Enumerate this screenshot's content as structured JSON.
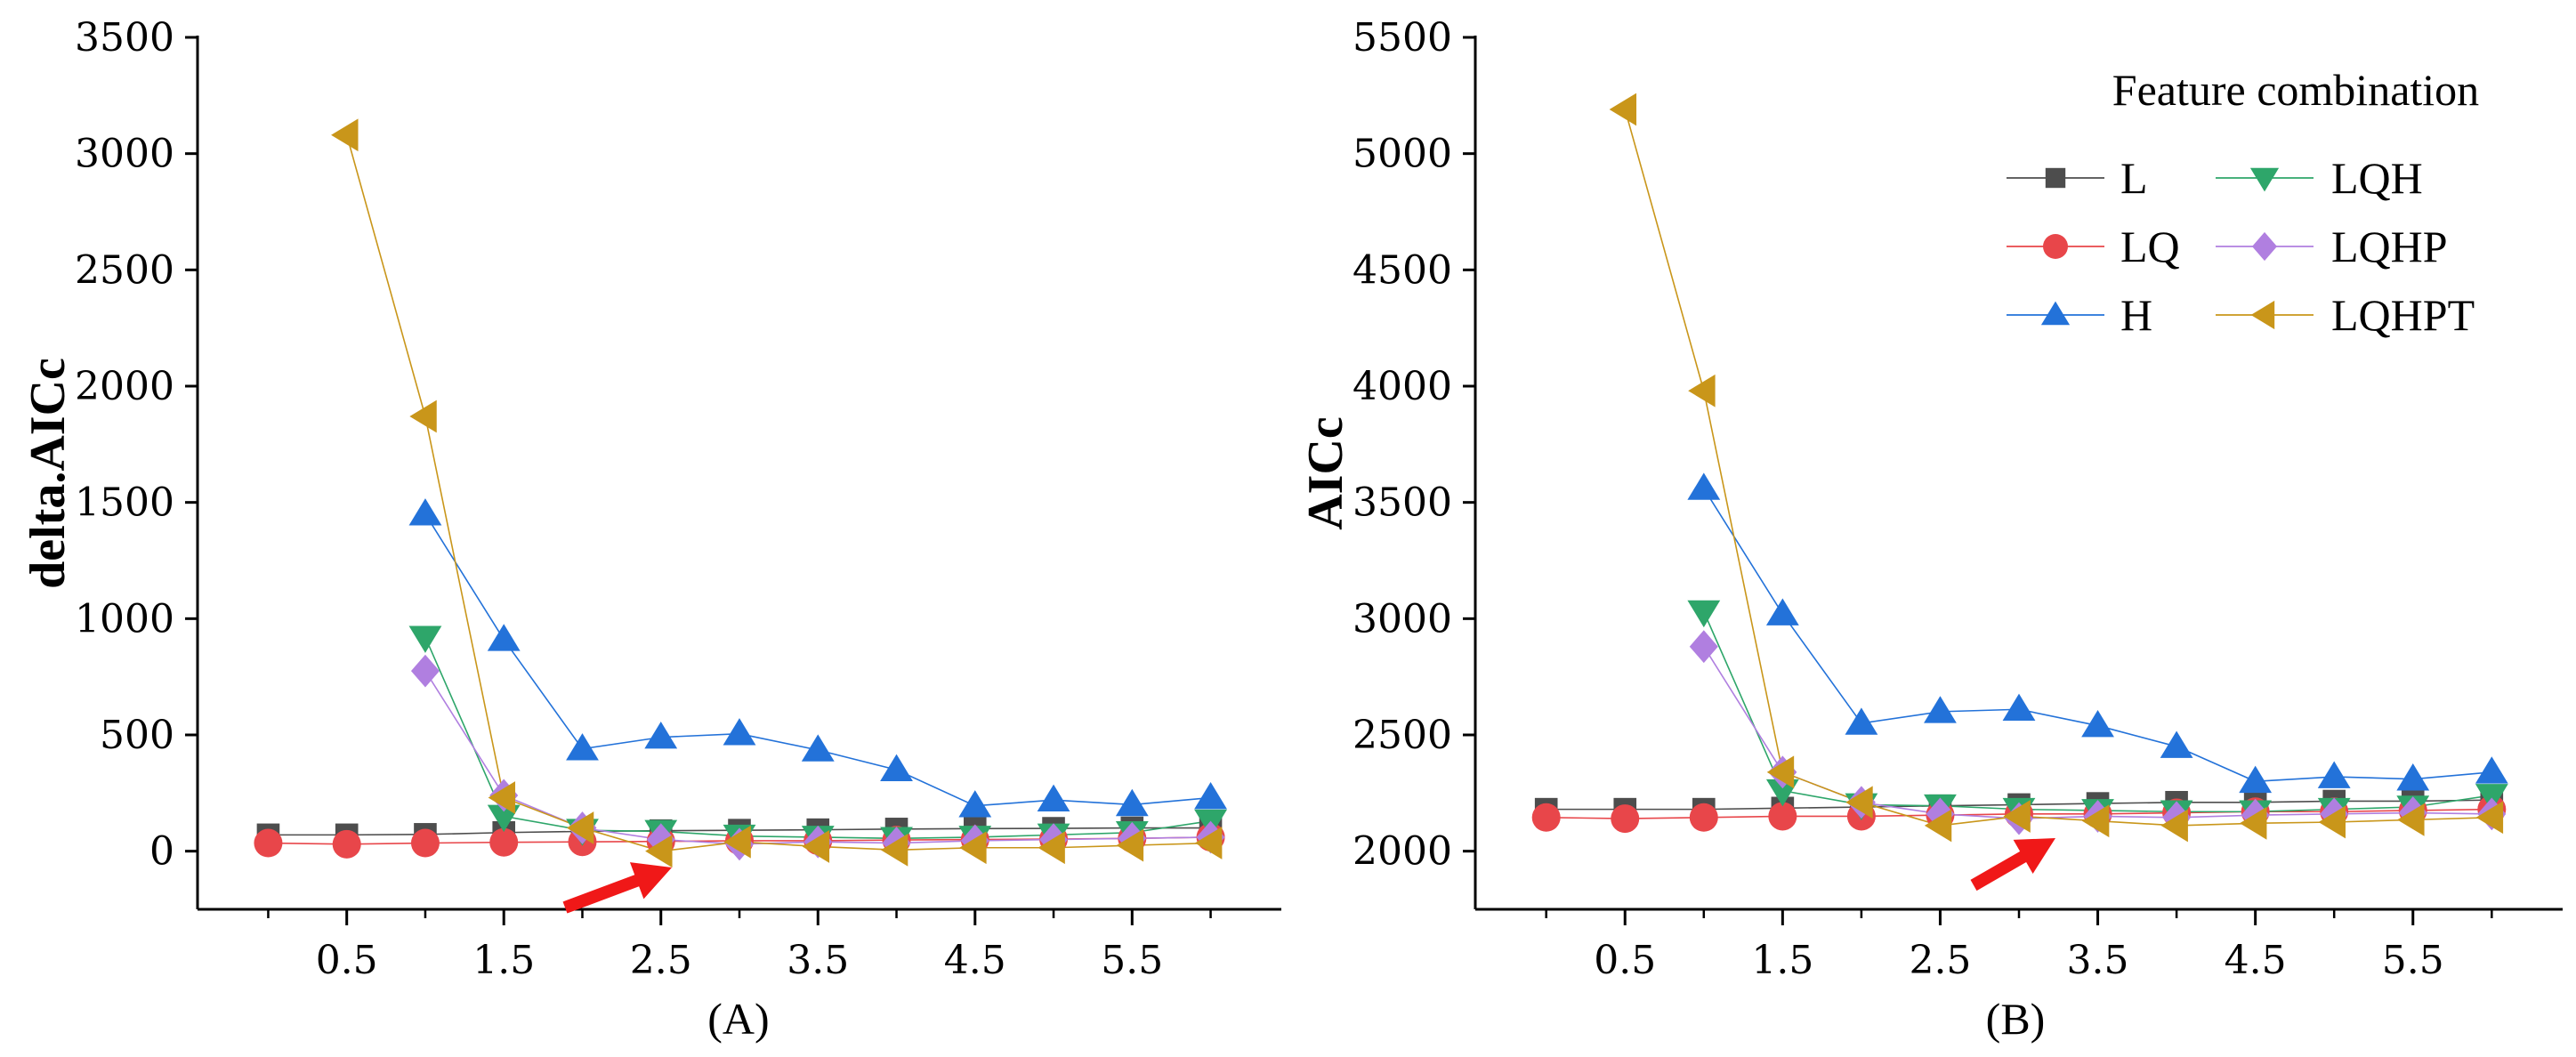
{
  "chart_data": [
    {
      "type": "line",
      "panel": "(A)",
      "ylabel": "delta.AICc",
      "xlabel": "",
      "xlim": [
        -0.45,
        6.45
      ],
      "ylim": [
        -250,
        3500
      ],
      "xticks": [
        0.5,
        1.5,
        2.5,
        3.5,
        4.5,
        5.5
      ],
      "xtick_labels": [
        "0.5",
        "1.5",
        "2.5",
        "3.5",
        "4.5",
        "5.5"
      ],
      "yticks": [
        0,
        500,
        1000,
        1500,
        2000,
        2500,
        3000,
        3500
      ],
      "ytick_labels": [
        "0",
        "500",
        "1000",
        "1500",
        "2000",
        "2500",
        "3000",
        "3500"
      ],
      "annotation": "red arrow pointing to minimum near x = 2.5",
      "series": [
        {
          "name": "L",
          "x": [
            0,
            0.5,
            1,
            1.5,
            2,
            2.5,
            3,
            3.5,
            4,
            4.5,
            5,
            5.5,
            6
          ],
          "y": [
            70,
            70,
            72,
            80,
            85,
            88,
            90,
            92,
            95,
            97,
            98,
            100,
            100
          ]
        },
        {
          "name": "LQ",
          "x": [
            0,
            0.5,
            1,
            1.5,
            2,
            2.5,
            3,
            3.5,
            4,
            4.5,
            5,
            5.5,
            6
          ],
          "y": [
            35,
            30,
            35,
            38,
            40,
            42,
            45,
            45,
            48,
            50,
            52,
            55,
            60
          ]
        },
        {
          "name": "H",
          "x": [
            1,
            1.5,
            2,
            2.5,
            3,
            3.5,
            4,
            4.5,
            5,
            5.5,
            6
          ],
          "y": [
            1450,
            910,
            440,
            490,
            505,
            435,
            350,
            195,
            220,
            200,
            230
          ]
        },
        {
          "name": "LQH",
          "x": [
            1,
            1.5,
            2,
            2.5,
            3,
            3.5,
            4,
            4.5,
            5,
            5.5,
            6
          ],
          "y": [
            920,
            150,
            90,
            85,
            65,
            60,
            55,
            60,
            70,
            80,
            130
          ]
        },
        {
          "name": "LQHP",
          "x": [
            1,
            1.5,
            2,
            2.5,
            3,
            3.5,
            4,
            4.5,
            5,
            5.5,
            6
          ],
          "y": [
            775,
            240,
            100,
            50,
            30,
            40,
            35,
            45,
            50,
            55,
            60
          ]
        },
        {
          "name": "LQHPT",
          "x": [
            0.5,
            1,
            1.5,
            2,
            2.5,
            3,
            3.5,
            4,
            4.5,
            5,
            5.5,
            6
          ],
          "y": [
            3080,
            1870,
            230,
            100,
            0,
            40,
            20,
            5,
            15,
            15,
            25,
            35
          ]
        }
      ]
    },
    {
      "type": "line",
      "panel": "(B)",
      "ylabel": "AICc",
      "xlabel": "",
      "xlim": [
        -0.45,
        6.45
      ],
      "ylim": [
        1750,
        5500
      ],
      "xticks": [
        0.5,
        1.5,
        2.5,
        3.5,
        4.5,
        5.5
      ],
      "xtick_labels": [
        "0.5",
        "1.5",
        "2.5",
        "3.5",
        "4.5",
        "5.5"
      ],
      "yticks": [
        2000,
        2500,
        3000,
        3500,
        4000,
        4500,
        5000,
        5500
      ],
      "ytick_labels": [
        "2000",
        "2500",
        "3000",
        "3500",
        "4000",
        "4500",
        "5000",
        "5500"
      ],
      "annotation": "red arrow pointing to minimum near x = 3.5",
      "legend": {
        "title": "Feature combination",
        "location": "top-right",
        "columns": 2
      },
      "series": [
        {
          "name": "L",
          "x": [
            0,
            0.5,
            1,
            1.5,
            2,
            2.5,
            3,
            3.5,
            4,
            4.5,
            5,
            5.5,
            6
          ],
          "y": [
            2180,
            2180,
            2180,
            2185,
            2190,
            2195,
            2200,
            2205,
            2210,
            2210,
            2215,
            2215,
            2220
          ]
        },
        {
          "name": "LQ",
          "x": [
            0,
            0.5,
            1,
            1.5,
            2,
            2.5,
            3,
            3.5,
            4,
            4.5,
            5,
            5.5,
            6
          ],
          "y": [
            2145,
            2140,
            2145,
            2150,
            2150,
            2155,
            2160,
            2160,
            2165,
            2170,
            2170,
            2175,
            2180
          ]
        },
        {
          "name": "H",
          "x": [
            1,
            1.5,
            2,
            2.5,
            3,
            3.5,
            4,
            4.5,
            5,
            5.5,
            6
          ],
          "y": [
            3560,
            3020,
            2550,
            2600,
            2610,
            2540,
            2450,
            2300,
            2320,
            2310,
            2340
          ]
        },
        {
          "name": "LQH",
          "x": [
            1,
            1.5,
            2,
            2.5,
            3,
            3.5,
            4,
            4.5,
            5,
            5.5,
            6
          ],
          "y": [
            3030,
            2260,
            2200,
            2195,
            2180,
            2175,
            2170,
            2170,
            2180,
            2190,
            2240
          ]
        },
        {
          "name": "LQHP",
          "x": [
            1,
            1.5,
            2,
            2.5,
            3,
            3.5,
            4,
            4.5,
            5,
            5.5,
            6
          ],
          "y": [
            2880,
            2340,
            2210,
            2160,
            2140,
            2150,
            2145,
            2155,
            2160,
            2165,
            2160
          ]
        },
        {
          "name": "LQHPT",
          "x": [
            0.5,
            1,
            1.5,
            2,
            2.5,
            3,
            3.5,
            4,
            4.5,
            5,
            5.5,
            6
          ],
          "y": [
            5190,
            3980,
            2340,
            2210,
            2110,
            2150,
            2130,
            2110,
            2120,
            2125,
            2135,
            2145
          ]
        }
      ]
    }
  ],
  "styles": {
    "L": {
      "color": "#4d4d4d",
      "marker": "square"
    },
    "LQ": {
      "color": "#e8464a",
      "marker": "circle"
    },
    "H": {
      "color": "#2372d9",
      "marker": "triangle-up"
    },
    "LQH": {
      "color": "#2ea66a",
      "marker": "triangle-down"
    },
    "LQHP": {
      "color": "#b07fe0",
      "marker": "diamond"
    },
    "LQHPT": {
      "color": "#c9961a",
      "marker": "triangle-left"
    },
    "arrow": {
      "color": "#f01818"
    }
  }
}
